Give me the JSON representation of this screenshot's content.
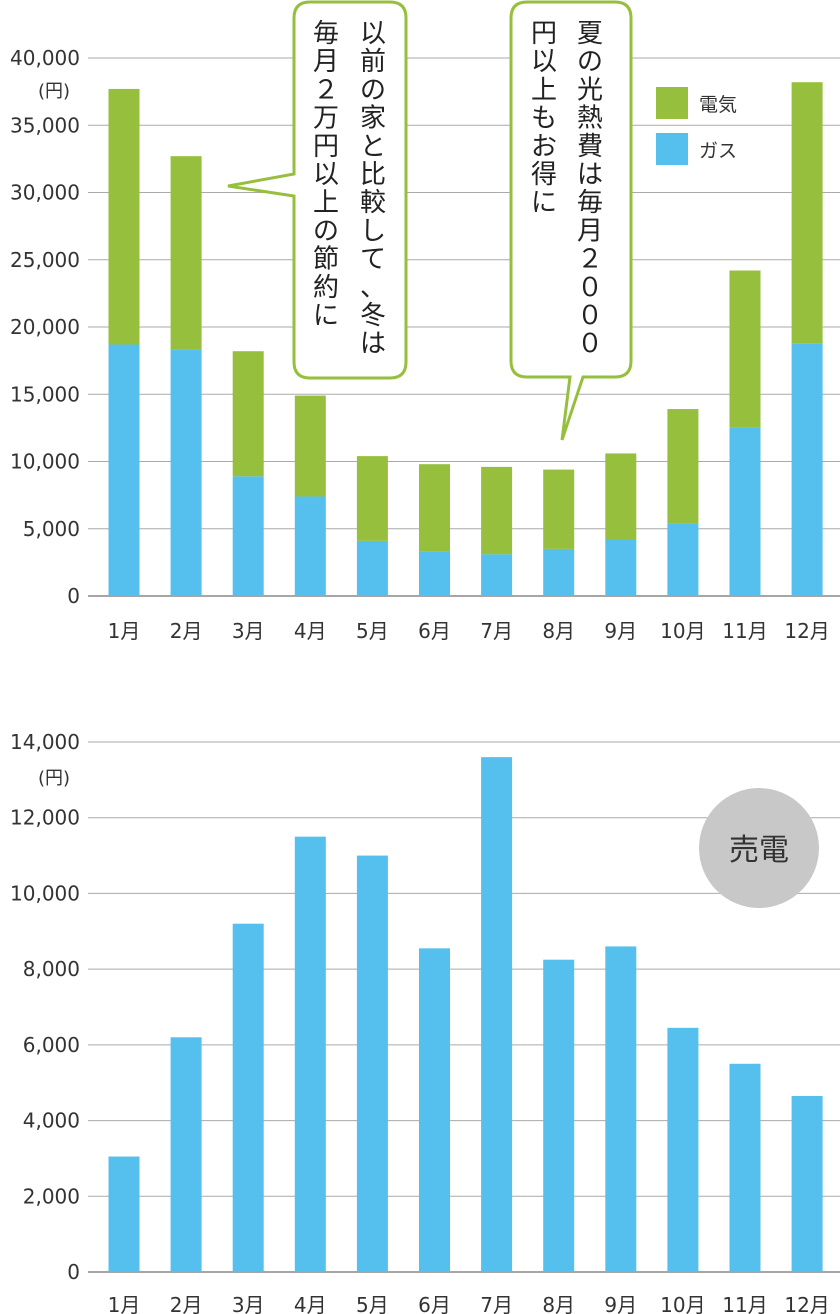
{
  "chart_data": [
    {
      "type": "bar",
      "stacked": true,
      "categories": [
        "1月",
        "2月",
        "3月",
        "4月",
        "5月",
        "6月",
        "7月",
        "8月",
        "9月",
        "10月",
        "11月",
        "12月"
      ],
      "series": [
        {
          "name": "ガス",
          "color": "#55bfee",
          "values": [
            18700,
            18300,
            8900,
            7400,
            4100,
            3300,
            3100,
            3500,
            4200,
            5400,
            12500,
            18800
          ]
        },
        {
          "name": "電気",
          "color": "#96bf3e",
          "values": [
            19000,
            14400,
            9300,
            7500,
            6300,
            6500,
            6500,
            5900,
            6400,
            8500,
            11700,
            19400
          ]
        }
      ],
      "yunit": "(円)",
      "ylim": [
        0,
        40000
      ],
      "yticks": [
        0,
        5000,
        10000,
        15000,
        20000,
        25000,
        30000,
        35000,
        40000
      ],
      "ytick_labels": [
        "0",
        "5,000",
        "10,000",
        "15,000",
        "20,000",
        "25,000",
        "30,000",
        "35,000",
        "40,000"
      ],
      "grid": true,
      "legend_position": "top-right",
      "annotations": [
        {
          "lines": [
            "以前の家と比較して、冬は",
            "毎月２万円以上の節約に"
          ],
          "border_color": "#96bf3e"
        },
        {
          "lines": [
            "夏の光熱費は毎月２０００",
            "円以上もお得に"
          ],
          "border_color": "#96bf3e"
        }
      ]
    },
    {
      "type": "bar",
      "categories": [
        "1月",
        "2月",
        "3月",
        "4月",
        "5月",
        "6月",
        "7月",
        "8月",
        "9月",
        "10月",
        "11月",
        "12月"
      ],
      "series": [
        {
          "color": "#55bfee",
          "values": [
            3050,
            6200,
            9200,
            11500,
            11000,
            8550,
            13600,
            8250,
            8600,
            6450,
            5500,
            4650
          ]
        }
      ],
      "yunit": "(円)",
      "ylim": [
        0,
        14000
      ],
      "yticks": [
        0,
        2000,
        4000,
        6000,
        8000,
        10000,
        12000,
        14000
      ],
      "ytick_labels": [
        "0",
        "2,000",
        "4,000",
        "6,000",
        "8,000",
        "10,000",
        "12,000",
        "14,000"
      ],
      "grid": true,
      "badge": {
        "text": "売電",
        "color": "#c8c8c8"
      }
    }
  ]
}
